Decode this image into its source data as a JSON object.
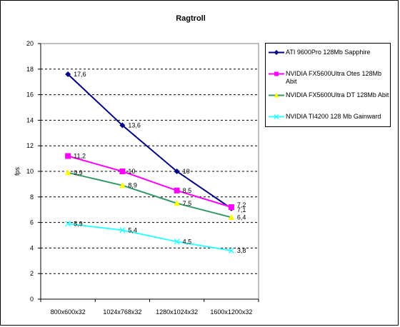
{
  "chart_data": {
    "type": "line",
    "title": "Ragtroll",
    "xlabel": "",
    "ylabel": "fps",
    "ylim": [
      0,
      20
    ],
    "yticks": [
      0,
      2,
      4,
      6,
      8,
      10,
      12,
      14,
      16,
      18,
      20
    ],
    "categories": [
      "800x600x32",
      "1024x768x32",
      "1280x1024x32",
      "1600x1200x32"
    ],
    "grid": "horizontal dashed",
    "legend_position": "right",
    "series": [
      {
        "name": "ATI 9600Pro 128Mb Sapphire",
        "values": [
          17.6,
          13.6,
          10,
          7.1
        ],
        "labels": [
          "17,6",
          "13,6",
          "10",
          "7,1"
        ],
        "color": "#000080",
        "marker": "diamond"
      },
      {
        "name": "NVIDIA FX5600Ultra Otes 128Mb Abit",
        "values": [
          11.2,
          10,
          8.5,
          7.2
        ],
        "labels": [
          "11,2",
          "10",
          "8,5",
          "7,2"
        ],
        "color": "#ff00ff",
        "marker": "square"
      },
      {
        "name": "NVIDIA FX5600Ultra DT 128Mb Abit",
        "values": [
          9.9,
          8.9,
          7.5,
          6.4
        ],
        "labels": [
          "9,9",
          "8,9",
          "7,5",
          "6,4"
        ],
        "color": "#339966",
        "marker": "triangle",
        "marker_color": "#ffff00"
      },
      {
        "name": "NVIDIA TI4200 128 Mb Gainward",
        "values": [
          5.9,
          5.4,
          4.5,
          3.8
        ],
        "labels": [
          "5,9",
          "5,4",
          "4,5",
          "3,8"
        ],
        "color": "#33ffff",
        "marker": "x"
      }
    ]
  }
}
